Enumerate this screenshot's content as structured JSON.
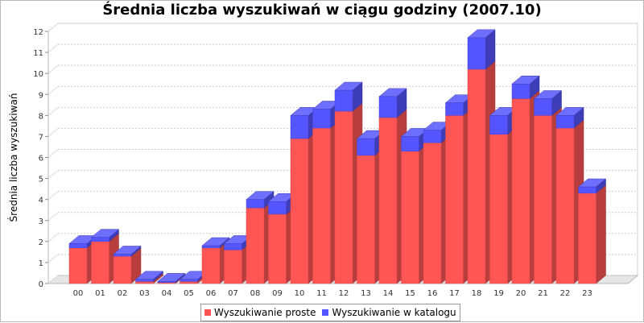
{
  "chart_data": {
    "type": "bar",
    "stacked": true,
    "three_d": true,
    "title": "Średnia liczba wyszukiwań w ciągu godziny (2007.10)",
    "xlabel": "",
    "ylabel": "Średnia liczba wyszukiwań",
    "ylim": [
      0,
      12
    ],
    "yticks": [
      0,
      1,
      2,
      3,
      4,
      5,
      6,
      7,
      8,
      9,
      10,
      11,
      12
    ],
    "grid": true,
    "legend_position": "bottom",
    "categories": [
      "00",
      "01",
      "02",
      "03",
      "04",
      "05",
      "06",
      "07",
      "08",
      "09",
      "10",
      "11",
      "12",
      "13",
      "14",
      "15",
      "16",
      "17",
      "18",
      "19",
      "20",
      "21",
      "22",
      "23"
    ],
    "series": [
      {
        "name": "Wyszukiwanie proste",
        "color": "#ff5555",
        "values": [
          1.7,
          2.0,
          1.3,
          0.1,
          0.05,
          0.1,
          1.7,
          1.6,
          3.6,
          3.3,
          6.9,
          7.4,
          8.2,
          6.1,
          7.9,
          6.3,
          6.7,
          8.0,
          10.2,
          7.1,
          8.8,
          8.0,
          7.4,
          4.3
        ]
      },
      {
        "name": "Wyszukiwanie w katalogu",
        "color": "#5555ff",
        "values": [
          0.2,
          0.2,
          0.1,
          0.1,
          0.05,
          0.1,
          0.1,
          0.3,
          0.4,
          0.6,
          1.1,
          0.9,
          1.0,
          0.8,
          1.0,
          0.7,
          0.6,
          0.6,
          1.5,
          0.9,
          0.7,
          0.8,
          0.6,
          0.3
        ]
      }
    ]
  }
}
